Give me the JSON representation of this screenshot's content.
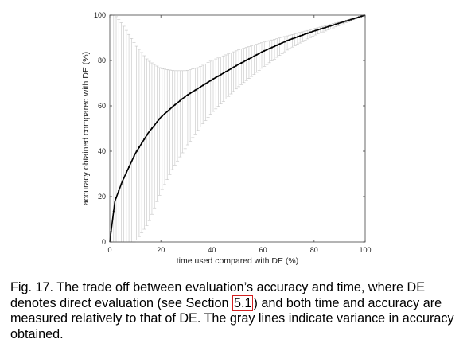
{
  "chart_data": {
    "type": "line",
    "xlabel": "time used compared with DE (%)",
    "ylabel": "accuracy obtained compared with DE (%)",
    "xlim": [
      0,
      100
    ],
    "ylim": [
      0,
      100
    ],
    "xticks": [
      0,
      20,
      40,
      60,
      80,
      100
    ],
    "yticks": [
      0,
      20,
      40,
      60,
      80,
      100
    ],
    "grid": false,
    "series": [
      {
        "role": "mean",
        "x": [
          0,
          2,
          5,
          10,
          15,
          20,
          25,
          30,
          35,
          40,
          50,
          60,
          70,
          80,
          90,
          100
        ],
        "y": [
          0,
          18,
          27,
          39,
          48,
          55,
          60,
          64.5,
          68,
          71.5,
          78,
          84,
          89,
          93,
          96.5,
          100
        ]
      },
      {
        "role": "upper-bound",
        "x": [
          0,
          2,
          5,
          10,
          15,
          20,
          25,
          30,
          35,
          40,
          50,
          60,
          70,
          80,
          90,
          100
        ],
        "y": [
          100,
          100,
          96,
          87,
          80,
          76.5,
          75.5,
          75.5,
          77,
          80,
          84.5,
          88,
          91,
          94,
          97,
          100
        ]
      },
      {
        "role": "lower-bound",
        "x": [
          0,
          2,
          5,
          10,
          15,
          20,
          25,
          30,
          35,
          40,
          50,
          60,
          70,
          80,
          90,
          100
        ],
        "y": [
          0,
          0,
          0,
          0,
          8,
          22,
          33,
          42,
          50,
          57,
          68,
          77,
          85,
          91,
          95.5,
          100
        ]
      }
    ]
  },
  "caption": {
    "before": "Fig. 17. The trade off between evaluation’s accuracy and time, where DE denotes direct evaluation (see Section ",
    "ref": "5.1",
    "after": ") and both time and accuracy are measured relatively to that of DE. The gray lines indicate variance in accuracy obtained."
  }
}
